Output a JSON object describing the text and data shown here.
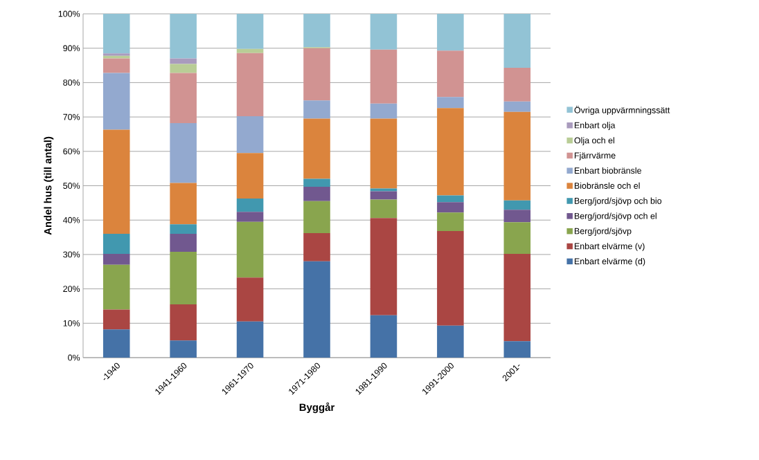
{
  "chart_data": {
    "type": "bar",
    "stacked": true,
    "xlabel": "Byggår",
    "ylabel": "Andel hus (till antal)",
    "categories": [
      "-1940",
      "1941-1960",
      "1961-1970",
      "1971-1980",
      "1981-1990",
      "1991-2000",
      "2001-"
    ],
    "series": [
      {
        "name": "Enbart elvärme (d)",
        "color": "#4572a7",
        "values": [
          8.2,
          5,
          10.5,
          28,
          12.3,
          9.3,
          4.8
        ]
      },
      {
        "name": "Enbart elvärme (v)",
        "color": "#aa4643",
        "values": [
          5.8,
          10.5,
          12.8,
          8.2,
          28.3,
          27.5,
          25.4
        ]
      },
      {
        "name": "Berg/jord/sjövp",
        "color": "#89a54e",
        "values": [
          13.0,
          15.3,
          16.2,
          9.3,
          5.4,
          5.4,
          9.2
        ]
      },
      {
        "name": "Berg/jord/sjövp och el",
        "color": "#71588f",
        "values": [
          3.2,
          5.2,
          2.9,
          4.2,
          2.4,
          3,
          3.6
        ]
      },
      {
        "name": "Berg/jord/sjövp och bio",
        "color": "#4198af",
        "values": [
          5.8,
          2.8,
          3.9,
          2.3,
          0.8,
          2,
          2.7
        ]
      },
      {
        "name": "Biobränsle och el",
        "color": "#db843d",
        "values": [
          30.3,
          12,
          13.2,
          17.5,
          20.3,
          25.4,
          25.8
        ]
      },
      {
        "name": "Enbart biobränsle",
        "color": "#93a9cf",
        "values": [
          16.5,
          17.4,
          10.7,
          5.3,
          4.4,
          3.2,
          3
        ]
      },
      {
        "name": "Fjärrvärme",
        "color": "#d19392",
        "values": [
          4.2,
          14.6,
          18.4,
          15.2,
          15.7,
          13.5,
          9.8
        ]
      },
      {
        "name": "Olja och el",
        "color": "#b9cd96",
        "values": [
          0.8,
          2.6,
          1.2,
          0.3,
          0,
          0,
          0
        ]
      },
      {
        "name": "Enbart olja",
        "color": "#a99bbd",
        "values": [
          0.7,
          1.6,
          0,
          0,
          0,
          0,
          0
        ]
      },
      {
        "name": "Övriga uppvärmningssätt",
        "color": "#92c3d5",
        "values": [
          11.5,
          13,
          10.2,
          9.7,
          10.4,
          10.7,
          15.7
        ]
      }
    ],
    "ylim": [
      0,
      100
    ],
    "yticks": [
      {
        "value": 0,
        "label": "0%"
      },
      {
        "value": 10,
        "label": "10%"
      },
      {
        "value": 20,
        "label": "20%"
      },
      {
        "value": 30,
        "label": "30%"
      },
      {
        "value": 40,
        "label": "40%"
      },
      {
        "value": 50,
        "label": "50%"
      },
      {
        "value": 60,
        "label": "60%"
      },
      {
        "value": 70,
        "label": "70%"
      },
      {
        "value": 80,
        "label": "80%"
      },
      {
        "value": 90,
        "label": "90%"
      },
      {
        "value": 100,
        "label": "100%"
      }
    ],
    "grid": "y",
    "legend": "right"
  }
}
